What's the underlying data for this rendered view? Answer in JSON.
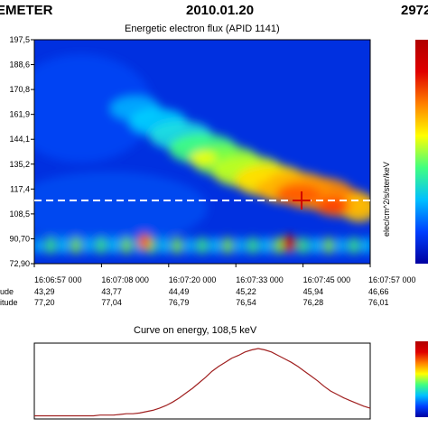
{
  "header": {
    "left": "EMETER",
    "center": "2010.01.20",
    "right": "2972"
  },
  "chart_data": [
    {
      "type": "heatmap",
      "title": "Energetic electron flux (APID 1141)",
      "y_ticks": [
        "197,5",
        "188,6",
        "170,8",
        "161,9",
        "144,1",
        "135,2",
        "117,4",
        "108,5",
        "90,70",
        "72,90"
      ],
      "x_ticks": [
        "16:06:57 000",
        "16:07:08 000",
        "16:07:20 000",
        "16:07:33 000",
        "16:07:45 000",
        "16:07:57 000"
      ],
      "x_rows": [
        {
          "label": "ude",
          "values": [
            "43,29",
            "43,77",
            "44,49",
            "45,22",
            "45,94",
            "46,66"
          ]
        },
        {
          "label": "itude",
          "values": [
            "77,20",
            "77,04",
            "76,79",
            "76,54",
            "76,28",
            "76,01"
          ]
        }
      ],
      "colorbar_label": "elec/cm^2/s/ster/keV",
      "selected_energy": "108,5",
      "colormap": [
        "#0000a0",
        "#0040ff",
        "#00c0ff",
        "#40ff80",
        "#ffff00",
        "#ff8000",
        "#e00000",
        "#b00000"
      ]
    },
    {
      "type": "line",
      "title": "Curve on energy, 108,5 keV",
      "line_color": "#a02020",
      "values": [
        0.02,
        0.02,
        0.02,
        0.02,
        0.02,
        0.02,
        0.02,
        0.02,
        0.02,
        0.02,
        0.03,
        0.03,
        0.03,
        0.04,
        0.05,
        0.05,
        0.06,
        0.08,
        0.1,
        0.13,
        0.17,
        0.22,
        0.28,
        0.35,
        0.42,
        0.5,
        0.58,
        0.67,
        0.74,
        0.8,
        0.86,
        0.9,
        0.95,
        0.98,
        1.0,
        0.98,
        0.95,
        0.9,
        0.85,
        0.8,
        0.74,
        0.67,
        0.6,
        0.53,
        0.45,
        0.38,
        0.33,
        0.28,
        0.24,
        0.2,
        0.16,
        0.13
      ]
    }
  ]
}
